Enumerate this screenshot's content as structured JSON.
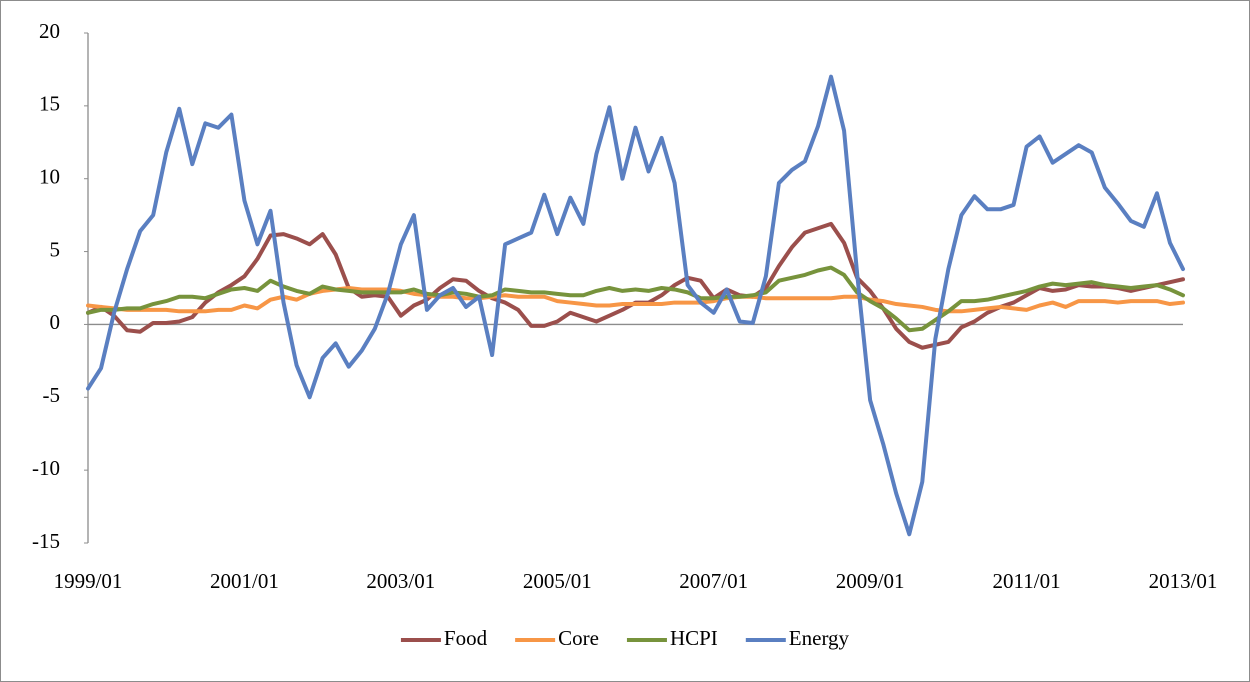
{
  "chart_data": {
    "type": "line",
    "categories": [
      "1999/01",
      null,
      null,
      null,
      null,
      null,
      null,
      null,
      null,
      null,
      null,
      null,
      "2001/01",
      null,
      null,
      null,
      null,
      null,
      null,
      null,
      null,
      null,
      null,
      null,
      "2003/01",
      null,
      null,
      null,
      null,
      null,
      null,
      null,
      null,
      null,
      null,
      null,
      "2005/01",
      null,
      null,
      null,
      null,
      null,
      null,
      null,
      null,
      null,
      null,
      null,
      "2007/01",
      null,
      null,
      null,
      null,
      null,
      null,
      null,
      null,
      null,
      null,
      null,
      "2009/01",
      null,
      null,
      null,
      null,
      null,
      null,
      null,
      null,
      null,
      null,
      null,
      "2011/01",
      null,
      null,
      null,
      null,
      null,
      null,
      null,
      null,
      null,
      null,
      null,
      "2013/01"
    ],
    "series": [
      {
        "name": "Food",
        "color": "#9b4f4c",
        "values": [
          0.8,
          1.2,
          0.6,
          -0.4,
          -0.5,
          0.1,
          0.1,
          0.2,
          0.5,
          1.5,
          2.2,
          2.7,
          3.3,
          4.5,
          6.1,
          6.2,
          5.9,
          5.5,
          6.2,
          4.8,
          2.5,
          1.9,
          2.0,
          1.9,
          0.6,
          1.3,
          1.7,
          2.5,
          3.1,
          3.0,
          2.3,
          1.8,
          1.5,
          1.0,
          -0.1,
          -0.1,
          0.2,
          0.8,
          0.5,
          0.2,
          0.6,
          1.0,
          1.5,
          1.5,
          2.0,
          2.7,
          3.2,
          3.0,
          1.8,
          2.4,
          2.0,
          1.9,
          2.5,
          4.0,
          5.3,
          6.3,
          6.6,
          6.9,
          5.6,
          3.2,
          2.3,
          1.1,
          -0.3,
          -1.2,
          -1.6,
          -1.4,
          -1.2,
          -0.2,
          0.2,
          0.8,
          1.2,
          1.5,
          2.0,
          2.5,
          2.3,
          2.4,
          2.7,
          2.6,
          2.6,
          2.5,
          2.3,
          2.5,
          2.7,
          2.9,
          3.1
        ]
      },
      {
        "name": "Core",
        "color": "#f79646",
        "values": [
          1.3,
          1.2,
          1.1,
          1.0,
          1.0,
          1.0,
          1.0,
          0.9,
          0.9,
          0.9,
          1.0,
          1.0,
          1.3,
          1.1,
          1.7,
          1.9,
          1.7,
          2.1,
          2.3,
          2.4,
          2.5,
          2.4,
          2.4,
          2.4,
          2.3,
          2.1,
          2.0,
          1.9,
          1.9,
          1.8,
          1.8,
          1.9,
          2.0,
          1.9,
          1.9,
          1.9,
          1.6,
          1.5,
          1.4,
          1.3,
          1.3,
          1.4,
          1.4,
          1.4,
          1.4,
          1.5,
          1.5,
          1.5,
          1.6,
          1.8,
          1.9,
          1.9,
          1.8,
          1.8,
          1.8,
          1.8,
          1.8,
          1.8,
          1.9,
          1.9,
          1.7,
          1.6,
          1.4,
          1.3,
          1.2,
          1.0,
          0.9,
          0.9,
          1.0,
          1.1,
          1.2,
          1.1,
          1.0,
          1.3,
          1.5,
          1.2,
          1.6,
          1.6,
          1.6,
          1.5,
          1.6,
          1.6,
          1.6,
          1.4,
          1.5
        ]
      },
      {
        "name": "HCPI",
        "color": "#77933c",
        "values": [
          0.8,
          1.0,
          1.0,
          1.1,
          1.1,
          1.4,
          1.6,
          1.9,
          1.9,
          1.8,
          2.1,
          2.4,
          2.5,
          2.3,
          3.0,
          2.6,
          2.3,
          2.1,
          2.6,
          2.4,
          2.3,
          2.2,
          2.2,
          2.2,
          2.2,
          2.4,
          2.1,
          2.0,
          2.2,
          2.1,
          1.9,
          2.0,
          2.4,
          2.3,
          2.2,
          2.2,
          2.1,
          2.0,
          2.0,
          2.3,
          2.5,
          2.3,
          2.4,
          2.3,
          2.5,
          2.4,
          2.2,
          1.8,
          1.8,
          1.9,
          1.9,
          2.0,
          2.2,
          3.0,
          3.2,
          3.4,
          3.7,
          3.9,
          3.4,
          2.2,
          1.6,
          1.1,
          0.4,
          -0.4,
          -0.3,
          0.3,
          0.9,
          1.6,
          1.6,
          1.7,
          1.9,
          2.1,
          2.3,
          2.6,
          2.8,
          2.7,
          2.8,
          2.9,
          2.7,
          2.6,
          2.5,
          2.6,
          2.7,
          2.4,
          2.0
        ]
      },
      {
        "name": "Energy",
        "color": "#5a7fc1",
        "values": [
          -4.4,
          -3.0,
          0.8,
          3.8,
          6.4,
          7.5,
          11.8,
          14.8,
          11.0,
          13.8,
          13.5,
          14.4,
          8.5,
          5.5,
          7.8,
          1.5,
          -2.8,
          -5.0,
          -2.3,
          -1.3,
          -2.9,
          -1.8,
          -0.3,
          2.1,
          5.5,
          7.5,
          1.0,
          2.0,
          2.5,
          1.2,
          1.9,
          -2.1,
          5.5,
          5.9,
          6.3,
          8.9,
          6.2,
          8.7,
          6.9,
          11.7,
          14.9,
          10.0,
          13.5,
          10.5,
          12.8,
          9.7,
          2.7,
          1.5,
          0.8,
          2.4,
          0.2,
          0.1,
          3.3,
          9.7,
          10.6,
          11.2,
          13.6,
          17.0,
          13.3,
          3.5,
          -5.2,
          -8.2,
          -11.6,
          -14.4,
          -10.8,
          -1.0,
          3.8,
          7.5,
          8.8,
          7.9,
          7.9,
          8.2,
          12.2,
          12.9,
          11.1,
          11.7,
          12.3,
          11.8,
          9.4,
          8.3,
          7.1,
          6.7,
          9.0,
          5.6,
          3.8
        ]
      }
    ],
    "ylim": [
      -15,
      20
    ],
    "yticks": [
      -15,
      -10,
      -5,
      0,
      5,
      10,
      15,
      20
    ],
    "grid": false,
    "legend_position": "bottom"
  }
}
